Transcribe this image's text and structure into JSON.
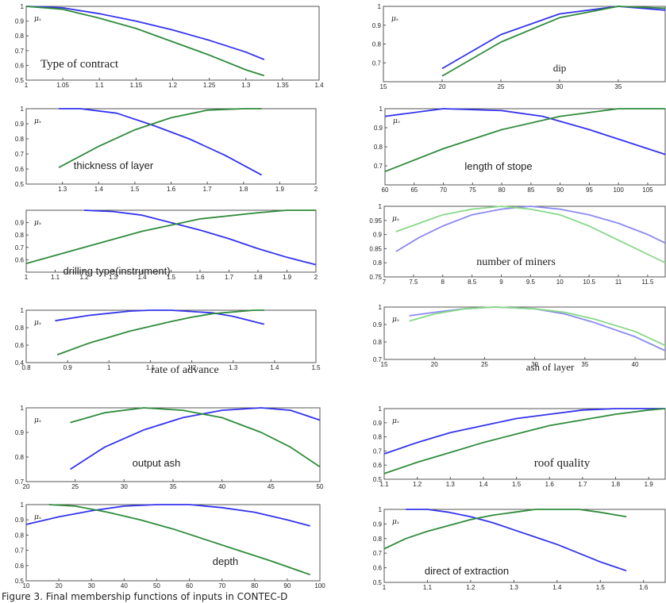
{
  "caption": "Figure 3. Final membership functions of inputs in CONTEC-D",
  "colors": {
    "blue": "#3333ee",
    "green": "#2e8b3a",
    "light_blue": "#8a8af0",
    "light_green": "#86d986",
    "frame": "#555555"
  },
  "mu_label": "μₓ",
  "chart_data": [
    {
      "type": "line",
      "title": "Type of contract",
      "xlim": [
        1,
        1.4
      ],
      "ylim": [
        0.5,
        1
      ],
      "xticks": [
        "1",
        "1.05",
        "1.1",
        "1.15",
        "1.2",
        "1.25",
        "1.3",
        "1.35",
        "1.4"
      ],
      "yticks": [
        "0.5",
        "0.6",
        "0.7",
        "0.8",
        "0.9",
        "1"
      ],
      "series": [
        {
          "color": "blue",
          "x": [
            1,
            1.05,
            1.1,
            1.15,
            1.2,
            1.25,
            1.3,
            1.325
          ],
          "y": [
            1,
            0.99,
            0.95,
            0.9,
            0.84,
            0.77,
            0.69,
            0.64
          ]
        },
        {
          "color": "green",
          "x": [
            1,
            1.05,
            1.1,
            1.15,
            1.2,
            1.25,
            1.3,
            1.325
          ],
          "y": [
            1,
            0.98,
            0.92,
            0.85,
            0.76,
            0.67,
            0.57,
            0.53
          ]
        }
      ]
    },
    {
      "type": "line",
      "title": "dip",
      "xlim": [
        15,
        39
      ],
      "ylim": [
        0.6,
        1
      ],
      "xticks": [
        "15",
        "20",
        "25",
        "30",
        "35"
      ],
      "yticks": [
        "0.7",
        "0.8",
        "0.9",
        "1"
      ],
      "series": [
        {
          "color": "blue",
          "x": [
            20,
            25,
            30,
            35,
            39
          ],
          "y": [
            0.67,
            0.85,
            0.96,
            1,
            0.98
          ]
        },
        {
          "color": "green",
          "x": [
            20,
            25,
            30,
            35,
            39
          ],
          "y": [
            0.63,
            0.81,
            0.94,
            1,
            0.99
          ]
        }
      ]
    },
    {
      "type": "line",
      "title": "thickness of layer",
      "xlim": [
        1.2,
        2
      ],
      "ylim": [
        0.5,
        1
      ],
      "xticks": [
        "1.3",
        "1.4",
        "1.5",
        "1.6",
        "1.7",
        "1.8",
        "1.9",
        "2"
      ],
      "yticks": [
        "0.5",
        "0.6",
        "0.7",
        "0.8",
        "0.9",
        "1"
      ],
      "series": [
        {
          "color": "blue",
          "x": [
            1.29,
            1.35,
            1.45,
            1.55,
            1.65,
            1.75,
            1.85
          ],
          "y": [
            1,
            1,
            0.97,
            0.89,
            0.8,
            0.69,
            0.56
          ]
        },
        {
          "color": "green",
          "x": [
            1.29,
            1.4,
            1.5,
            1.6,
            1.7,
            1.8,
            1.85
          ],
          "y": [
            0.61,
            0.75,
            0.86,
            0.94,
            0.99,
            1,
            1
          ]
        }
      ]
    },
    {
      "type": "line",
      "title": "length of  stope",
      "xlim": [
        60,
        108
      ],
      "ylim": [
        0.6,
        1
      ],
      "xticks": [
        "60",
        "65",
        "70",
        "75",
        "80",
        "85",
        "90",
        "95",
        "100",
        "105"
      ],
      "yticks": [
        "0.7",
        "0.8",
        "0.9",
        "1"
      ],
      "series": [
        {
          "color": "blue",
          "x": [
            60,
            70,
            80,
            87,
            95,
            100,
            108
          ],
          "y": [
            0.96,
            1,
            0.99,
            0.96,
            0.89,
            0.84,
            0.76
          ]
        },
        {
          "color": "green",
          "x": [
            60,
            70,
            80,
            90,
            100,
            108
          ],
          "y": [
            0.67,
            0.79,
            0.89,
            0.96,
            1,
            1
          ]
        }
      ]
    },
    {
      "type": "line",
      "title": "drilling type(instrument)",
      "xlim": [
        1,
        2
      ],
      "ylim": [
        0.5,
        1
      ],
      "xticks": [
        "1",
        "1.1",
        "1.2",
        "1.3",
        "1.4",
        "1.5",
        "1.6",
        "1.7",
        "1.8",
        "1.9",
        "2"
      ],
      "yticks": [
        "0.9",
        "0.8",
        "0.7",
        "0.6"
      ],
      "series": [
        {
          "color": "blue",
          "x": [
            1.2,
            1.3,
            1.4,
            1.5,
            1.6,
            1.7,
            1.8,
            1.9,
            2
          ],
          "y": [
            1,
            0.99,
            0.96,
            0.9,
            0.84,
            0.77,
            0.69,
            0.62,
            0.56
          ]
        },
        {
          "color": "green",
          "x": [
            1,
            1.2,
            1.4,
            1.5,
            1.6,
            1.8,
            1.9,
            2
          ],
          "y": [
            0.57,
            0.7,
            0.83,
            0.88,
            0.93,
            0.98,
            1,
            1
          ]
        }
      ]
    },
    {
      "type": "line",
      "title": "number of miners",
      "xlim": [
        7,
        11.8
      ],
      "ylim": [
        0.75,
        1
      ],
      "xticks": [
        "7",
        "7.5",
        "8",
        "8.5",
        "9",
        "9.5",
        "10",
        "10.5",
        "11",
        "11.5"
      ],
      "yticks": [
        "0.75",
        "0.8",
        "0.85",
        "0.9",
        "0.95",
        "1"
      ],
      "series": [
        {
          "color": "light_blue",
          "x": [
            7.2,
            7.6,
            8,
            8.5,
            9,
            9.5,
            10,
            10.5,
            11,
            11.5,
            11.8
          ],
          "y": [
            0.84,
            0.89,
            0.93,
            0.97,
            0.99,
            1,
            0.99,
            0.97,
            0.94,
            0.9,
            0.87
          ]
        },
        {
          "color": "light_green",
          "x": [
            7.2,
            7.6,
            8,
            8.5,
            9,
            9.5,
            10,
            10.5,
            11,
            11.5,
            11.8
          ],
          "y": [
            0.91,
            0.94,
            0.97,
            0.99,
            1,
            0.99,
            0.97,
            0.93,
            0.88,
            0.83,
            0.8
          ]
        }
      ]
    },
    {
      "type": "line",
      "title": "rate of advance",
      "xlim": [
        0.8,
        1.5
      ],
      "ylim": [
        0.4,
        1
      ],
      "xticks": [
        "0.8",
        "0.9",
        "1",
        "1.1",
        "1.2",
        "1.3",
        "1.4",
        "1.5"
      ],
      "yticks": [
        "0.4",
        "0.6",
        "0.8",
        "1"
      ],
      "series": [
        {
          "color": "blue",
          "x": [
            0.87,
            0.95,
            1.05,
            1.1,
            1.15,
            1.25,
            1.3,
            1.375
          ],
          "y": [
            0.88,
            0.94,
            0.99,
            1,
            1,
            0.97,
            0.93,
            0.84
          ]
        },
        {
          "color": "green",
          "x": [
            0.875,
            0.95,
            1.05,
            1.15,
            1.2,
            1.25,
            1.3,
            1.35,
            1.375
          ],
          "y": [
            0.49,
            0.62,
            0.76,
            0.87,
            0.92,
            0.96,
            0.98,
            1,
            1
          ]
        }
      ]
    },
    {
      "type": "line",
      "title": "ash of layer",
      "xlim": [
        15,
        43
      ],
      "ylim": [
        0.7,
        1
      ],
      "xticks": [
        "15",
        "20",
        "25",
        "30",
        "35",
        "40"
      ],
      "yticks": [
        "0.7",
        "0.8",
        "0.9",
        "1"
      ],
      "series": [
        {
          "color": "light_blue",
          "x": [
            17.5,
            20,
            23,
            26,
            30,
            33,
            36,
            40,
            43
          ],
          "y": [
            0.95,
            0.97,
            0.99,
            1,
            0.99,
            0.96,
            0.91,
            0.83,
            0.75
          ]
        },
        {
          "color": "light_green",
          "x": [
            17.5,
            20,
            23,
            26,
            30,
            33,
            36,
            40,
            43
          ],
          "y": [
            0.92,
            0.96,
            0.99,
            1,
            0.99,
            0.97,
            0.93,
            0.86,
            0.78
          ]
        }
      ]
    },
    {
      "type": "line",
      "title": "output ash",
      "xlim": [
        20,
        50
      ],
      "ylim": [
        0.7,
        1
      ],
      "xticks": [
        "20",
        "25",
        "30",
        "35",
        "40",
        "45",
        "50"
      ],
      "yticks": [
        "0.7",
        "0.8",
        "0.9",
        "1"
      ],
      "series": [
        {
          "color": "blue",
          "x": [
            24.5,
            28,
            32,
            36,
            40,
            44,
            47,
            50
          ],
          "y": [
            0.75,
            0.84,
            0.91,
            0.96,
            0.99,
            1,
            0.99,
            0.95
          ]
        },
        {
          "color": "green",
          "x": [
            24.5,
            28,
            32,
            36,
            40,
            44,
            47,
            50
          ],
          "y": [
            0.94,
            0.98,
            1,
            0.99,
            0.96,
            0.9,
            0.84,
            0.76
          ]
        }
      ]
    },
    {
      "type": "line",
      "title": "roof quality",
      "xlim": [
        1.1,
        1.95
      ],
      "ylim": [
        0.5,
        1
      ],
      "xticks": [
        "1.1",
        "1.2",
        "1.3",
        "1.4",
        "1.5",
        "1.6",
        "1.7",
        "1.8",
        "1.9"
      ],
      "yticks": [
        "0.5",
        "0.6",
        "0.7",
        "0.8",
        "0.9",
        "1"
      ],
      "series": [
        {
          "color": "blue",
          "x": [
            1.1,
            1.2,
            1.3,
            1.4,
            1.5,
            1.6,
            1.7,
            1.8,
            1.95
          ],
          "y": [
            0.68,
            0.76,
            0.83,
            0.88,
            0.93,
            0.96,
            0.99,
            1,
            1
          ]
        },
        {
          "color": "green",
          "x": [
            1.1,
            1.2,
            1.3,
            1.4,
            1.5,
            1.6,
            1.7,
            1.8,
            1.9,
            1.95
          ],
          "y": [
            0.54,
            0.62,
            0.69,
            0.76,
            0.82,
            0.88,
            0.92,
            0.96,
            0.99,
            1
          ]
        }
      ]
    },
    {
      "type": "line",
      "title": "depth",
      "xlim": [
        10,
        100
      ],
      "ylim": [
        0.5,
        1
      ],
      "xticks": [
        "10",
        "20",
        "30",
        "40",
        "50",
        "60",
        "70",
        "80",
        "90",
        "100"
      ],
      "yticks": [
        "0.5",
        "0.6",
        "0.7",
        "0.8",
        "0.9",
        "1"
      ],
      "series": [
        {
          "color": "blue",
          "x": [
            10,
            20,
            30,
            40,
            50,
            60,
            70,
            80,
            90,
            97
          ],
          "y": [
            0.87,
            0.92,
            0.96,
            0.99,
            1,
            1,
            0.98,
            0.95,
            0.9,
            0.86
          ]
        },
        {
          "color": "green",
          "x": [
            17,
            25,
            35,
            45,
            55,
            65,
            75,
            85,
            97
          ],
          "y": [
            1,
            0.99,
            0.95,
            0.9,
            0.84,
            0.77,
            0.7,
            0.63,
            0.54
          ]
        }
      ]
    },
    {
      "type": "line",
      "title": "direct of extraction",
      "xlim": [
        1,
        1.65
      ],
      "ylim": [
        0.5,
        1
      ],
      "xticks": [
        "1",
        "1.1",
        "1.2",
        "1.3",
        "1.4",
        "1.5",
        "1.6"
      ],
      "yticks": [
        "0.5",
        "0.6",
        "0.7",
        "0.8",
        "0.9",
        "1"
      ],
      "series": [
        {
          "color": "blue",
          "x": [
            1.05,
            1.1,
            1.15,
            1.2,
            1.25,
            1.3,
            1.35,
            1.4,
            1.45,
            1.5,
            1.56
          ],
          "y": [
            1,
            1,
            0.98,
            0.95,
            0.91,
            0.86,
            0.81,
            0.76,
            0.7,
            0.64,
            0.58
          ]
        },
        {
          "color": "green",
          "x": [
            1,
            1.05,
            1.1,
            1.15,
            1.2,
            1.25,
            1.3,
            1.35,
            1.4,
            1.45,
            1.5,
            1.56
          ],
          "y": [
            0.73,
            0.8,
            0.85,
            0.89,
            0.93,
            0.96,
            0.98,
            1,
            1,
            1,
            0.98,
            0.95
          ]
        }
      ]
    }
  ]
}
